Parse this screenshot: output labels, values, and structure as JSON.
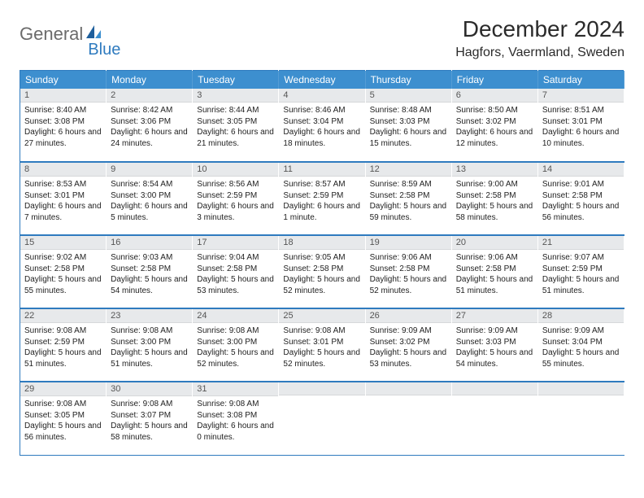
{
  "logo": {
    "text1": "General",
    "text2": "Blue"
  },
  "title": "December 2024",
  "location": "Hagfors, Vaermland, Sweden",
  "colors": {
    "header_bg": "#3d8fcf",
    "header_text": "#ffffff",
    "daynum_bg": "#e7e9eb",
    "border": "#2f7bbf",
    "logo_gray": "#6b6b6b",
    "logo_blue": "#2f7bbf"
  },
  "weekdays": [
    "Sunday",
    "Monday",
    "Tuesday",
    "Wednesday",
    "Thursday",
    "Friday",
    "Saturday"
  ],
  "weeks": [
    [
      {
        "n": "1",
        "sr": "Sunrise: 8:40 AM",
        "ss": "Sunset: 3:08 PM",
        "dl": "Daylight: 6 hours and 27 minutes."
      },
      {
        "n": "2",
        "sr": "Sunrise: 8:42 AM",
        "ss": "Sunset: 3:06 PM",
        "dl": "Daylight: 6 hours and 24 minutes."
      },
      {
        "n": "3",
        "sr": "Sunrise: 8:44 AM",
        "ss": "Sunset: 3:05 PM",
        "dl": "Daylight: 6 hours and 21 minutes."
      },
      {
        "n": "4",
        "sr": "Sunrise: 8:46 AM",
        "ss": "Sunset: 3:04 PM",
        "dl": "Daylight: 6 hours and 18 minutes."
      },
      {
        "n": "5",
        "sr": "Sunrise: 8:48 AM",
        "ss": "Sunset: 3:03 PM",
        "dl": "Daylight: 6 hours and 15 minutes."
      },
      {
        "n": "6",
        "sr": "Sunrise: 8:50 AM",
        "ss": "Sunset: 3:02 PM",
        "dl": "Daylight: 6 hours and 12 minutes."
      },
      {
        "n": "7",
        "sr": "Sunrise: 8:51 AM",
        "ss": "Sunset: 3:01 PM",
        "dl": "Daylight: 6 hours and 10 minutes."
      }
    ],
    [
      {
        "n": "8",
        "sr": "Sunrise: 8:53 AM",
        "ss": "Sunset: 3:01 PM",
        "dl": "Daylight: 6 hours and 7 minutes."
      },
      {
        "n": "9",
        "sr": "Sunrise: 8:54 AM",
        "ss": "Sunset: 3:00 PM",
        "dl": "Daylight: 6 hours and 5 minutes."
      },
      {
        "n": "10",
        "sr": "Sunrise: 8:56 AM",
        "ss": "Sunset: 2:59 PM",
        "dl": "Daylight: 6 hours and 3 minutes."
      },
      {
        "n": "11",
        "sr": "Sunrise: 8:57 AM",
        "ss": "Sunset: 2:59 PM",
        "dl": "Daylight: 6 hours and 1 minute."
      },
      {
        "n": "12",
        "sr": "Sunrise: 8:59 AM",
        "ss": "Sunset: 2:58 PM",
        "dl": "Daylight: 5 hours and 59 minutes."
      },
      {
        "n": "13",
        "sr": "Sunrise: 9:00 AM",
        "ss": "Sunset: 2:58 PM",
        "dl": "Daylight: 5 hours and 58 minutes."
      },
      {
        "n": "14",
        "sr": "Sunrise: 9:01 AM",
        "ss": "Sunset: 2:58 PM",
        "dl": "Daylight: 5 hours and 56 minutes."
      }
    ],
    [
      {
        "n": "15",
        "sr": "Sunrise: 9:02 AM",
        "ss": "Sunset: 2:58 PM",
        "dl": "Daylight: 5 hours and 55 minutes."
      },
      {
        "n": "16",
        "sr": "Sunrise: 9:03 AM",
        "ss": "Sunset: 2:58 PM",
        "dl": "Daylight: 5 hours and 54 minutes."
      },
      {
        "n": "17",
        "sr": "Sunrise: 9:04 AM",
        "ss": "Sunset: 2:58 PM",
        "dl": "Daylight: 5 hours and 53 minutes."
      },
      {
        "n": "18",
        "sr": "Sunrise: 9:05 AM",
        "ss": "Sunset: 2:58 PM",
        "dl": "Daylight: 5 hours and 52 minutes."
      },
      {
        "n": "19",
        "sr": "Sunrise: 9:06 AM",
        "ss": "Sunset: 2:58 PM",
        "dl": "Daylight: 5 hours and 52 minutes."
      },
      {
        "n": "20",
        "sr": "Sunrise: 9:06 AM",
        "ss": "Sunset: 2:58 PM",
        "dl": "Daylight: 5 hours and 51 minutes."
      },
      {
        "n": "21",
        "sr": "Sunrise: 9:07 AM",
        "ss": "Sunset: 2:59 PM",
        "dl": "Daylight: 5 hours and 51 minutes."
      }
    ],
    [
      {
        "n": "22",
        "sr": "Sunrise: 9:08 AM",
        "ss": "Sunset: 2:59 PM",
        "dl": "Daylight: 5 hours and 51 minutes."
      },
      {
        "n": "23",
        "sr": "Sunrise: 9:08 AM",
        "ss": "Sunset: 3:00 PM",
        "dl": "Daylight: 5 hours and 51 minutes."
      },
      {
        "n": "24",
        "sr": "Sunrise: 9:08 AM",
        "ss": "Sunset: 3:00 PM",
        "dl": "Daylight: 5 hours and 52 minutes."
      },
      {
        "n": "25",
        "sr": "Sunrise: 9:08 AM",
        "ss": "Sunset: 3:01 PM",
        "dl": "Daylight: 5 hours and 52 minutes."
      },
      {
        "n": "26",
        "sr": "Sunrise: 9:09 AM",
        "ss": "Sunset: 3:02 PM",
        "dl": "Daylight: 5 hours and 53 minutes."
      },
      {
        "n": "27",
        "sr": "Sunrise: 9:09 AM",
        "ss": "Sunset: 3:03 PM",
        "dl": "Daylight: 5 hours and 54 minutes."
      },
      {
        "n": "28",
        "sr": "Sunrise: 9:09 AM",
        "ss": "Sunset: 3:04 PM",
        "dl": "Daylight: 5 hours and 55 minutes."
      }
    ],
    [
      {
        "n": "29",
        "sr": "Sunrise: 9:08 AM",
        "ss": "Sunset: 3:05 PM",
        "dl": "Daylight: 5 hours and 56 minutes."
      },
      {
        "n": "30",
        "sr": "Sunrise: 9:08 AM",
        "ss": "Sunset: 3:07 PM",
        "dl": "Daylight: 5 hours and 58 minutes."
      },
      {
        "n": "31",
        "sr": "Sunrise: 9:08 AM",
        "ss": "Sunset: 3:08 PM",
        "dl": "Daylight: 6 hours and 0 minutes."
      },
      {
        "n": "",
        "sr": "",
        "ss": "",
        "dl": ""
      },
      {
        "n": "",
        "sr": "",
        "ss": "",
        "dl": ""
      },
      {
        "n": "",
        "sr": "",
        "ss": "",
        "dl": ""
      },
      {
        "n": "",
        "sr": "",
        "ss": "",
        "dl": ""
      }
    ]
  ]
}
